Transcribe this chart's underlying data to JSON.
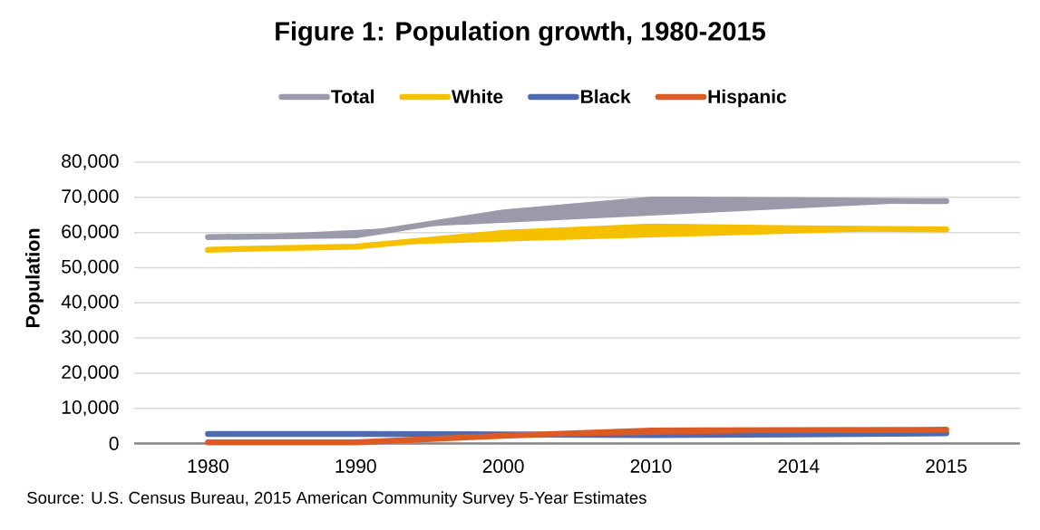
{
  "chart_data": {
    "type": "line",
    "title": "Figure 1: Population growth, 1980-2015",
    "ylabel": "Population",
    "categories": [
      "1980",
      "1990",
      "2000",
      "2010",
      "2014",
      "2015"
    ],
    "series": [
      {
        "name": "Total",
        "color": "#9a9aaa",
        "values": [
          58700,
          59200,
          65700,
          69400,
          69200,
          68900
        ]
      },
      {
        "name": "White",
        "color": "#f5c000",
        "values": [
          55100,
          56000,
          59900,
          61700,
          61200,
          60900
        ]
      },
      {
        "name": "Black",
        "color": "#4f6aad",
        "values": [
          2700,
          2700,
          2600,
          2400,
          2600,
          2900
        ]
      },
      {
        "name": "Hispanic",
        "color": "#dc5a24",
        "values": [
          300,
          300,
          2200,
          3700,
          3800,
          3900
        ]
      }
    ],
    "ylim": [
      0,
      80000
    ],
    "yticks": [
      0,
      {
        "value": 10000,
        "label": "10,000"
      },
      {
        "value": 20000,
        "label": "20,000"
      },
      {
        "value": 30000,
        "label": "30,000"
      },
      {
        "value": 40000,
        "label": "40,000"
      },
      {
        "value": 50000,
        "label": "50,000"
      },
      {
        "value": 60000,
        "label": "60,000"
      },
      {
        "value": 70000,
        "label": "70,000"
      },
      {
        "value": 80000,
        "label": "80,000"
      }
    ],
    "grid": "y",
    "legend": "top",
    "annotations": [
      "Source: U.S. Census Bureau, 2015 American Community Survey 5-Year Estimates"
    ]
  }
}
